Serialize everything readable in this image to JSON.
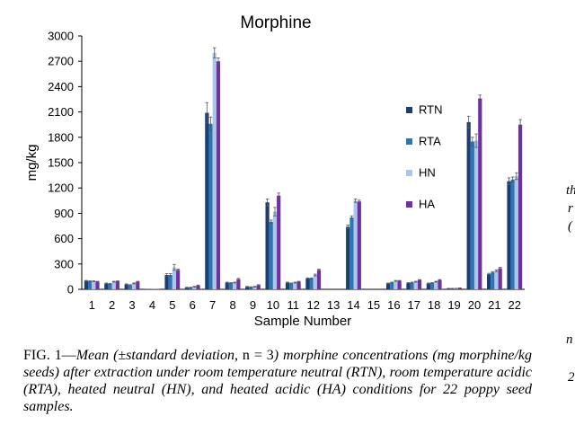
{
  "chart_data": {
    "type": "bar",
    "title": "Morphine",
    "xlabel": "Sample Number",
    "ylabel": "mg/kg",
    "ylim": [
      0,
      3000
    ],
    "yticks": [
      "0",
      "300",
      "600",
      "900",
      "1200",
      "1500",
      "1800",
      "2100",
      "2400",
      "2700",
      "3000"
    ],
    "categories": [
      "1",
      "2",
      "3",
      "4",
      "5",
      "6",
      "7",
      "8",
      "9",
      "10",
      "11",
      "12",
      "13",
      "14",
      "15",
      "16",
      "17",
      "18",
      "19",
      "20",
      "21",
      "22"
    ],
    "legend_position": "right",
    "grid": false,
    "series": [
      {
        "name": "RTN",
        "color": "#1f3c6e",
        "values": [
          100,
          70,
          60,
          5,
          170,
          20,
          2090,
          80,
          30,
          1030,
          80,
          130,
          0,
          740,
          0,
          70,
          75,
          70,
          10,
          1980,
          180,
          1280
        ],
        "errors": [
          5,
          5,
          5,
          0,
          15,
          5,
          120,
          5,
          5,
          40,
          5,
          5,
          0,
          20,
          0,
          5,
          5,
          5,
          2,
          70,
          10,
          40
        ]
      },
      {
        "name": "RTA",
        "color": "#2e75b6",
        "values": [
          95,
          65,
          50,
          3,
          170,
          20,
          1960,
          75,
          25,
          800,
          70,
          130,
          0,
          850,
          0,
          80,
          80,
          75,
          10,
          1750,
          200,
          1300
        ],
        "errors": [
          5,
          5,
          5,
          0,
          15,
          5,
          80,
          5,
          5,
          20,
          5,
          5,
          0,
          20,
          0,
          5,
          5,
          5,
          2,
          50,
          10,
          30
        ]
      },
      {
        "name": "HN",
        "color": "#a9c8e8",
        "values": [
          95,
          90,
          70,
          3,
          260,
          30,
          2800,
          80,
          30,
          920,
          80,
          170,
          0,
          1050,
          0,
          100,
          90,
          90,
          10,
          1760,
          220,
          1340
        ],
        "errors": [
          5,
          5,
          5,
          0,
          35,
          5,
          60,
          5,
          5,
          50,
          5,
          10,
          0,
          20,
          0,
          5,
          5,
          5,
          2,
          80,
          10,
          40
        ]
      },
      {
        "name": "HA",
        "color": "#7030a0",
        "values": [
          90,
          95,
          90,
          5,
          230,
          45,
          2700,
          120,
          50,
          1110,
          90,
          230,
          0,
          1040,
          0,
          100,
          110,
          110,
          15,
          2260,
          250,
          1950
        ],
        "errors": [
          5,
          5,
          5,
          0,
          10,
          5,
          40,
          10,
          5,
          30,
          5,
          10,
          0,
          15,
          0,
          5,
          5,
          5,
          2,
          40,
          10,
          60
        ]
      }
    ]
  },
  "caption": {
    "label": "FIG. 1—",
    "text_italic_1": "Mean (±standard deviation, ",
    "text_n": "n = 3",
    "text_italic_2": ") morphine concentrations (mg morphine/kg seeds) after extraction under room temperature neutral (RTN), room temperature acidic (RTA), heated neutral (HN), and heated acidic (HA) conditions for 22 poppy seed samples."
  },
  "side_fragments": [
    "th",
    "r",
    "(",
    "n",
    "2"
  ]
}
